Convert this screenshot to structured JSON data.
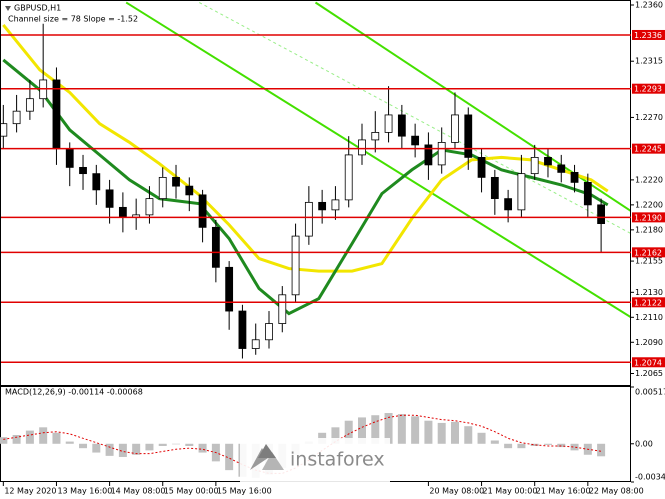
{
  "chart_data": {
    "type": "candlestick",
    "title": "GBPUSD,H1",
    "subtitle": "Channel size = 78 Slope = -1.52",
    "watermark": "instaforex",
    "xlim": [
      -1,
      189
    ],
    "ylim": [
      1.2055,
      1.2364
    ],
    "xticks": [
      {
        "value": 0,
        "label": "12 May 2020"
      },
      {
        "value": 16,
        "label": "13 May 16:00"
      },
      {
        "value": 32,
        "label": "14 May 08:00"
      },
      {
        "value": 48,
        "label": "15 May 00:00"
      },
      {
        "value": 64,
        "label": "15 May 16:00"
      },
      {
        "value": 128,
        "label": "20 May 08:00"
      },
      {
        "value": 144,
        "label": "21 May 00:00"
      },
      {
        "value": 160,
        "label": "21 May 16:00"
      },
      {
        "value": 176,
        "label": "22 May 08:00"
      }
    ],
    "yticks": [
      {
        "value": 1.236,
        "label": "1.2360"
      },
      {
        "value": 1.2315,
        "label": "1.2315"
      },
      {
        "value": 1.227,
        "label": "1.2270"
      },
      {
        "value": 1.222,
        "label": "1.2220"
      },
      {
        "value": 1.22,
        "label": "1.2200"
      },
      {
        "value": 1.218,
        "label": "1.2180"
      },
      {
        "value": 1.2155,
        "label": "1.2155"
      },
      {
        "value": 1.213,
        "label": "1.2130"
      },
      {
        "value": 1.211,
        "label": "1.2110"
      },
      {
        "value": 1.209,
        "label": "1.2090"
      },
      {
        "value": 1.2065,
        "label": "1.2065"
      }
    ],
    "x": [
      0,
      4,
      8,
      12,
      16,
      20,
      24,
      28,
      32,
      36,
      40,
      44,
      48,
      52,
      56,
      60,
      64,
      68,
      72,
      76,
      80,
      84,
      88,
      92,
      96,
      100,
      104,
      108,
      112,
      116,
      120,
      124,
      128,
      132,
      136,
      140,
      144,
      148,
      152,
      156,
      160,
      164,
      168,
      172,
      176,
      180
    ],
    "open": [
      1.2255,
      1.2265,
      1.2275,
      1.2285,
      1.23,
      1.2245,
      1.223,
      1.2225,
      1.2212,
      1.2198,
      1.219,
      1.2192,
      1.2205,
      1.2222,
      1.2215,
      1.2208,
      1.2182,
      1.215,
      1.2115,
      1.2085,
      1.2092,
      1.2105,
      1.2128,
      1.2175,
      1.2202,
      1.2196,
      1.2204,
      1.224,
      1.2252,
      1.2258,
      1.2272,
      1.2255,
      1.2248,
      1.2232,
      1.225,
      1.2272,
      1.2238,
      1.2222,
      1.2205,
      1.2196,
      1.2225,
      1.2238,
      1.2232,
      1.2226,
      1.2218,
      1.22
    ],
    "high": [
      1.228,
      1.2288,
      1.23,
      1.2345,
      1.231,
      1.225,
      1.224,
      1.2232,
      1.222,
      1.221,
      1.2205,
      1.2215,
      1.223,
      1.2232,
      1.2222,
      1.2212,
      1.2188,
      1.2155,
      1.212,
      1.2105,
      1.2115,
      1.2135,
      1.2185,
      1.2215,
      1.2212,
      1.2215,
      1.2255,
      1.2265,
      1.2275,
      1.2295,
      1.228,
      1.2265,
      1.2258,
      1.2262,
      1.229,
      1.2278,
      1.2245,
      1.2228,
      1.2212,
      1.224,
      1.2248,
      1.2245,
      1.224,
      1.2232,
      1.2225,
      1.2205
    ],
    "low": [
      1.2245,
      1.2258,
      1.2268,
      1.2278,
      1.2232,
      1.2215,
      1.2212,
      1.22,
      1.2185,
      1.2178,
      1.218,
      1.2185,
      1.2198,
      1.2205,
      1.2195,
      1.217,
      1.2138,
      1.21,
      1.2077,
      1.208,
      1.2085,
      1.2098,
      1.2122,
      1.2168,
      1.2185,
      1.2188,
      1.2198,
      1.2232,
      1.2242,
      1.225,
      1.2245,
      1.2238,
      1.222,
      1.2225,
      1.2245,
      1.2228,
      1.221,
      1.2192,
      1.2186,
      1.219,
      1.222,
      1.2222,
      1.2218,
      1.221,
      1.219,
      1.2162
    ],
    "close": [
      1.2265,
      1.2275,
      1.2285,
      1.23,
      1.2245,
      1.223,
      1.2225,
      1.2212,
      1.2198,
      1.219,
      1.2192,
      1.2205,
      1.2222,
      1.2215,
      1.2208,
      1.2182,
      1.215,
      1.2115,
      1.2085,
      1.2092,
      1.2105,
      1.2128,
      1.2175,
      1.2202,
      1.2196,
      1.2204,
      1.224,
      1.2252,
      1.2258,
      1.2272,
      1.2255,
      1.2248,
      1.2232,
      1.225,
      1.2272,
      1.2238,
      1.2222,
      1.2205,
      1.2196,
      1.2225,
      1.2238,
      1.2232,
      1.2226,
      1.2218,
      1.22,
      1.2185
    ],
    "candle_colors": {
      "up": "#ffffff",
      "down": "#000000",
      "edge": "#000000"
    },
    "moving_averages": [
      {
        "color": "#f2e600",
        "x": [
          0,
          11,
          20,
          29,
          38,
          47,
          59,
          68,
          77,
          86,
          95,
          105,
          114,
          123,
          132,
          141,
          150,
          159,
          168,
          177,
          182
        ],
        "values": [
          1.2344,
          1.2308,
          1.229,
          1.2265,
          1.225,
          1.2233,
          1.2208,
          1.2184,
          1.2157,
          1.2149,
          1.2147,
          1.2147,
          1.2153,
          1.2189,
          1.222,
          1.2236,
          1.2238,
          1.2236,
          1.2228,
          1.222,
          1.2211
        ]
      },
      {
        "color": "#1f8a1f",
        "x": [
          0,
          11,
          20,
          29,
          38,
          47,
          59,
          68,
          77,
          86,
          95,
          105,
          114,
          123,
          132,
          141,
          150,
          159,
          168,
          177,
          182
        ],
        "values": [
          1.2316,
          1.2292,
          1.226,
          1.224,
          1.222,
          1.2205,
          1.2201,
          1.2173,
          1.2133,
          1.2113,
          1.2125,
          1.2169,
          1.2209,
          1.2228,
          1.2244,
          1.224,
          1.2228,
          1.2222,
          1.2216,
          1.2208,
          1.22
        ]
      }
    ],
    "trend_lines": [
      {
        "color": "#44e000",
        "dashed": false,
        "x": [
          37,
          189
        ],
        "y": [
          1.2362,
          1.211
        ]
      },
      {
        "color": "#44e000",
        "dashed": false,
        "x": [
          94,
          189
        ],
        "y": [
          1.2362,
          1.2195
        ]
      },
      {
        "color": "#99ee88",
        "dashed": true,
        "x": [
          59,
          189
        ],
        "y": [
          1.2362,
          1.2177
        ]
      }
    ],
    "levels": [
      {
        "value": 1.2336,
        "label": "1.2336"
      },
      {
        "value": 1.2293,
        "label": "1.2293"
      },
      {
        "value": 1.2245,
        "label": "1.2245"
      },
      {
        "value": 1.219,
        "label": "1.2190"
      },
      {
        "value": 1.2162,
        "label": "1.2162"
      },
      {
        "value": 1.2122,
        "label": "1.2122"
      },
      {
        "value": 1.2074,
        "label": "1.2074"
      }
    ],
    "level_color": "#e00000",
    "macd": {
      "title": "MACD(12,26,9) -0.00114 -0.00068",
      "ylim": [
        -0.00348,
        0.00517
      ],
      "yticks": [
        0.00517,
        {
          "value": 0,
          "label": "0.00"
        },
        -0.00348
      ],
      "bar_color": "#c0c0c0",
      "signal_color": "#e00000",
      "values": [
        0.0006,
        0.0008,
        0.0012,
        0.0015,
        0.001,
        0.0002,
        -0.0004,
        -0.0008,
        -0.0011,
        -0.0012,
        -0.001,
        -0.0006,
        -0.0002,
        0,
        -0.0002,
        -0.0008,
        -0.0016,
        -0.0024,
        -0.003,
        -0.0031,
        -0.0028,
        -0.0022,
        -0.001,
        0.0002,
        0.001,
        0.0015,
        0.0021,
        0.0024,
        0.0026,
        0.0028,
        0.0027,
        0.0025,
        0.0021,
        0.0019,
        0.002,
        0.0016,
        0.001,
        0.0003,
        -0.0004,
        -0.0004,
        -0.0002,
        -0.0001,
        -0.0003,
        -0.0006,
        -0.001,
        -0.00114
      ],
      "signal": [
        0.0004,
        0.0006,
        0.0008,
        0.001,
        0.0011,
        0.0009,
        0.0005,
        0.0001,
        -0.0003,
        -0.0007,
        -0.0009,
        -0.0009,
        -0.0007,
        -0.0005,
        -0.0004,
        -0.0005,
        -0.0008,
        -0.0013,
        -0.0019,
        -0.0024,
        -0.0027,
        -0.0027,
        -0.0022,
        -0.0015,
        -0.0006,
        0.0002,
        0.0009,
        0.0015,
        0.002,
        0.0024,
        0.0026,
        0.0026,
        0.0024,
        0.0022,
        0.0021,
        0.0019,
        0.0016,
        0.0011,
        0.0005,
        0.0001,
        -0.0001,
        -0.0002,
        -0.0002,
        -0.0003,
        -0.0005,
        -0.00068
      ]
    }
  }
}
